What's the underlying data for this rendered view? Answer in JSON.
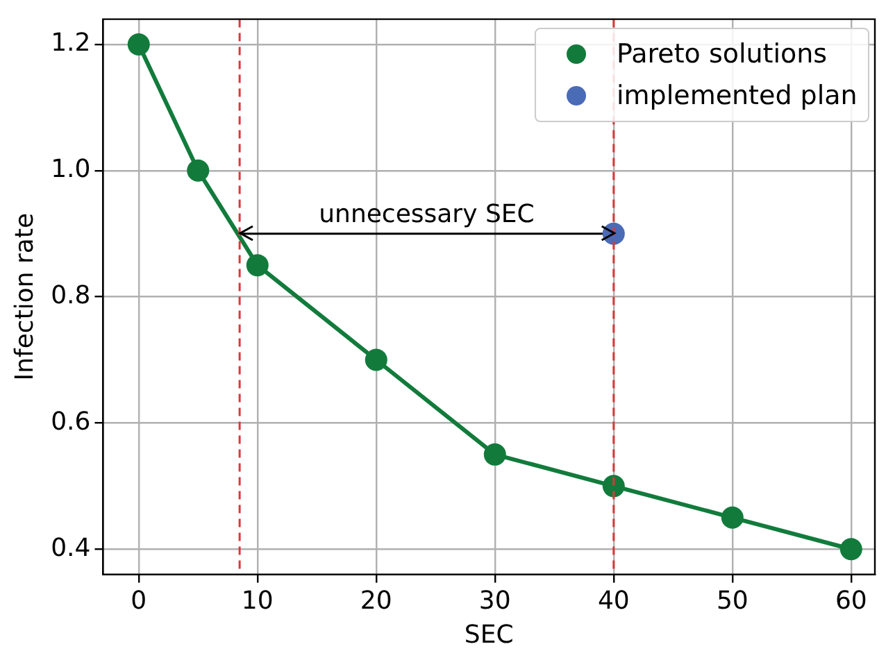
{
  "chart_data": {
    "type": "line",
    "xlabel": "SEC",
    "ylabel": "Infection rate",
    "xlim": [
      -3,
      62
    ],
    "xticks": [
      0,
      10,
      20,
      30,
      40,
      50,
      60
    ],
    "ylim": [
      0.36,
      1.24
    ],
    "yticks": [
      0.4,
      0.6,
      0.8,
      {
        "value": 1,
        "label": "1.0"
      },
      1.2
    ],
    "series": [
      {
        "name": "Pareto solutions",
        "color": "#127b3c",
        "x": [
          0,
          5,
          10,
          20,
          30,
          40,
          50,
          60
        ],
        "values": [
          1.2,
          1.0,
          0.85,
          0.7,
          0.55,
          0.5,
          0.45,
          0.4
        ]
      },
      {
        "name": "implemented plan",
        "type": "scatter",
        "color": "#4a6bb6",
        "x": [
          40
        ],
        "values": [
          0.9
        ]
      },
      {
        "type": "line",
        "color": "#000000",
        "x": [
          8.5,
          40
        ],
        "values": [
          0.9,
          0.9
        ],
        "marker": "none"
      }
    ],
    "ref_lines": [
      {
        "axis": "x",
        "value": 8.5,
        "color": "#d9393a",
        "line_style": "dashed"
      },
      {
        "axis": "x",
        "value": 40,
        "color": "#d9393a",
        "line_style": "dashed"
      }
    ],
    "annotations": [
      "unnecessary SEC"
    ],
    "grid": true,
    "legend": "top right",
    "marker": "circle",
    "line_style": "solid"
  }
}
